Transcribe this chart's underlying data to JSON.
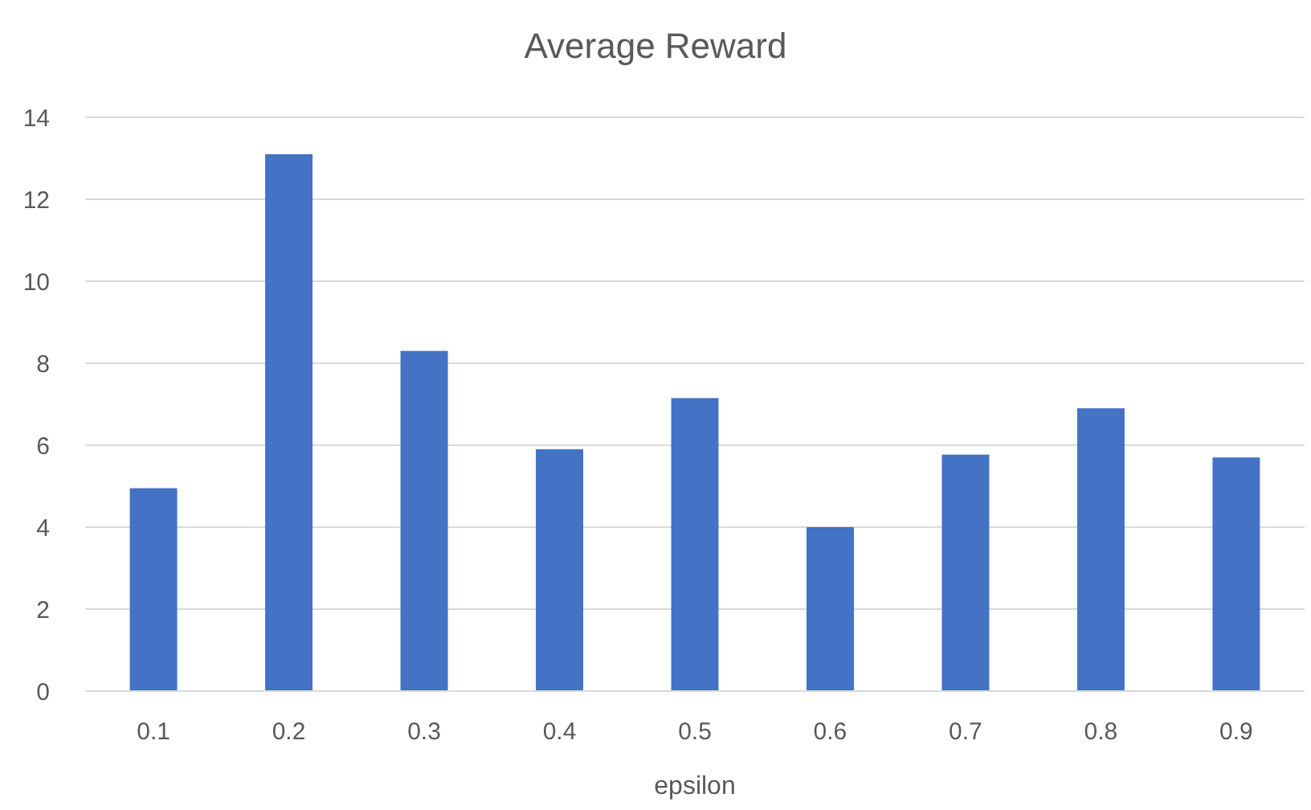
{
  "chart_data": {
    "type": "bar",
    "title": "Average Reward",
    "xlabel": "epsilon",
    "categories": [
      "0.1",
      "0.2",
      "0.3",
      "0.4",
      "0.5",
      "0.6",
      "0.7",
      "0.8",
      "0.9"
    ],
    "values": [
      4.95,
      13.1,
      8.3,
      5.9,
      7.15,
      4.0,
      5.77,
      6.9,
      5.7
    ],
    "color": "#4472c4",
    "ylim": [
      0,
      14
    ],
    "yticks": [
      0,
      2,
      4,
      6,
      8,
      10,
      12,
      14
    ],
    "grid": "y"
  }
}
